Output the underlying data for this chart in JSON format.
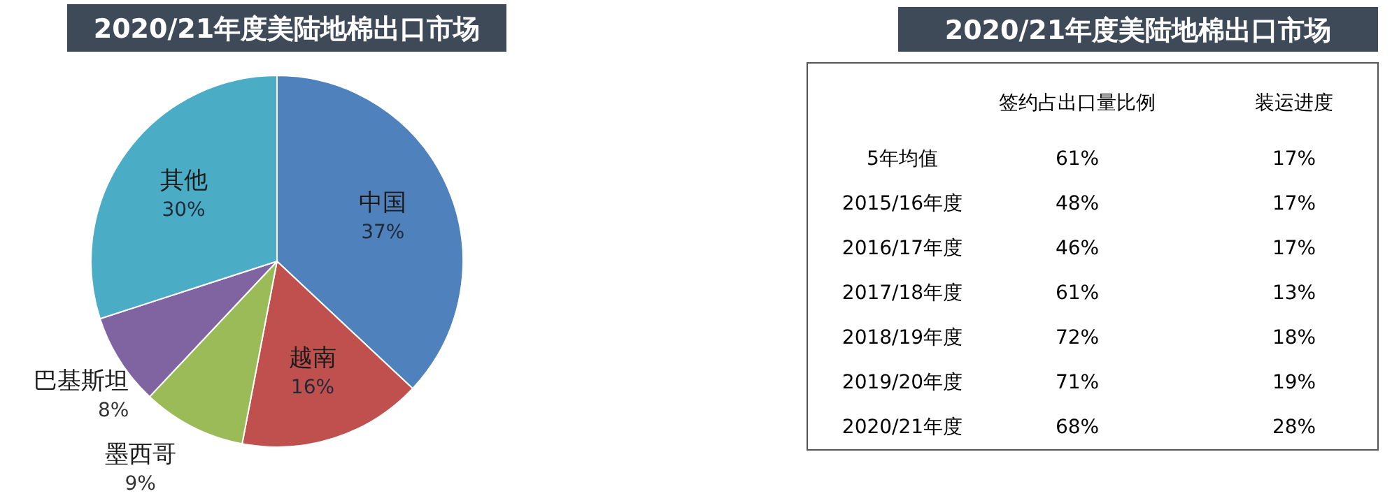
{
  "chart_data": [
    {
      "type": "pie",
      "title": "2020/21年度美陆地棉出口市场",
      "categories": [
        "中国",
        "越南",
        "墨西哥",
        "巴基斯坦",
        "其他"
      ],
      "values": [
        37,
        16,
        9,
        8,
        30
      ],
      "colors": [
        "#4f81bd",
        "#c0504d",
        "#9bbb59",
        "#8064a2",
        "#4bacc6"
      ],
      "value_labels": [
        "37%",
        "16%",
        "9%",
        "8%",
        "30%"
      ]
    },
    {
      "type": "other",
      "title": "2020/21年度美陆地棉出口市场",
      "categories": [
        "签约占出口量比例",
        "装运进度"
      ],
      "y_categories": [
        "5年均值",
        "2015/16年度",
        "2016/17年度",
        "2017/18年度",
        "2018/19年度",
        "2019/20年度",
        "2020/21年度"
      ],
      "cell_labels": [
        [
          "61%",
          "17%"
        ],
        [
          "48%",
          "17%"
        ],
        [
          "46%",
          "17%"
        ],
        [
          "61%",
          "13%"
        ],
        [
          "72%",
          "18%"
        ],
        [
          "71%",
          "19%"
        ],
        [
          "68%",
          "28%"
        ]
      ]
    }
  ]
}
